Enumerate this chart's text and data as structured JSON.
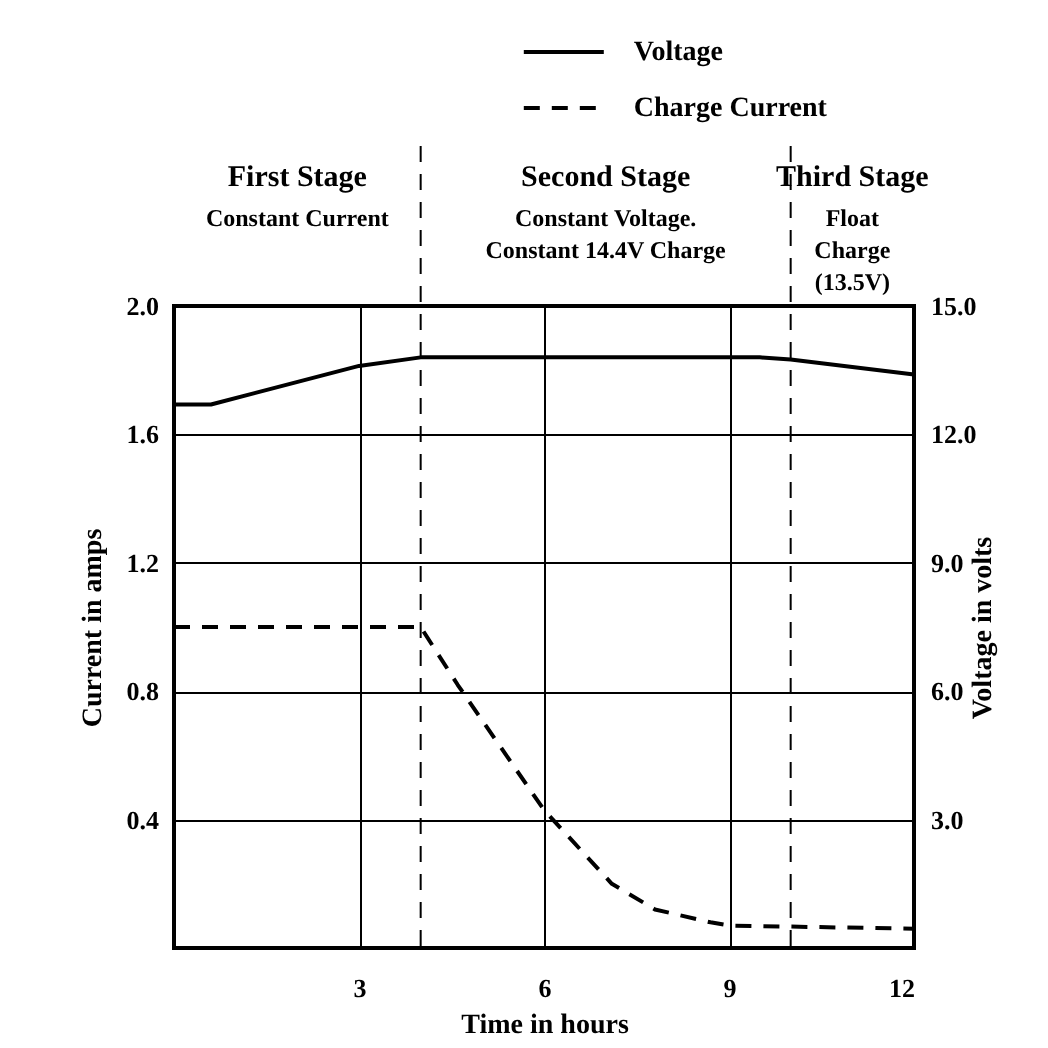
{
  "chart_data": {
    "type": "line",
    "xlabel": "Time in hours",
    "ylabel": "Current in amps",
    "y2label": "Voltage in volts",
    "series": [
      {
        "name": "Voltage",
        "color": "#000000",
        "axis": "y2",
        "line_style": "solid",
        "x": [
          0,
          0.6,
          3,
          4,
          9.5,
          10,
          12
        ],
        "values": [
          12.7,
          12.7,
          13.6,
          13.8,
          13.8,
          13.75,
          13.4
        ]
      },
      {
        "name": "Charge Current",
        "color": "#000000",
        "line_style": "dashed",
        "x": [
          0,
          4,
          4.6,
          6,
          7.1,
          7.8,
          8.7,
          9,
          12
        ],
        "values": [
          1.0,
          1.0,
          0.82,
          0.43,
          0.2,
          0.12,
          0.08,
          0.07,
          0.06
        ]
      }
    ],
    "xlim": [
      0,
      12
    ],
    "xticks": [
      3,
      6,
      9,
      12
    ],
    "ylim": [
      0,
      2.0
    ],
    "yticks": [
      0.4,
      0.8,
      1.2,
      1.6,
      {
        "value": 2.0,
        "label": "2.0"
      }
    ],
    "y2lim": [
      0,
      15
    ],
    "y2ticks": [
      {
        "value": 3,
        "label": "3.0"
      },
      {
        "value": 6,
        "label": "6.0"
      },
      {
        "value": 9,
        "label": "9.0"
      },
      {
        "value": 12,
        "label": "12.0"
      },
      {
        "value": 15,
        "label": "15.0"
      }
    ],
    "ref_lines": [
      {
        "axis": "x",
        "value": 4,
        "color": "#000000",
        "line_style": "dashed"
      },
      {
        "axis": "x",
        "value": 10,
        "color": "#000000",
        "line_style": "dashed"
      }
    ],
    "annotations": [
      "First Stage\nConstant Current",
      "Second Stage\nConstant Voltage.\nConstant 14.4V Charge",
      "Third Stage\nFloat\nCharge\n(13.5V)"
    ],
    "grid": true,
    "legend": "top right",
    "marker": "none"
  }
}
